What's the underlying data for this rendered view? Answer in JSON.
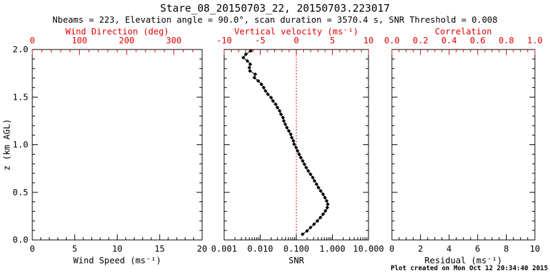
{
  "header": {
    "title": "Stare_08_20150703_22, 20150703.223017",
    "subtitle": "Nbeams = 223, Elevation angle = 90.0°, scan duration = 3570.4 s, SNR Threshold = 0.008"
  },
  "footer": {
    "created_text": "Plot created on Mon Oct 12 20:34:40 2015"
  },
  "colors": {
    "primary_axis": "#000000",
    "secondary_axis": "#e10000",
    "data_points": "#000000",
    "reference_line": "#e10000",
    "background": "#ffffff"
  },
  "chart_data": [
    {
      "id": "wind-panel",
      "type": "scatter",
      "bottom_axis": {
        "title": "Wind Speed (ms⁻¹)",
        "scale": "linear",
        "min": 0,
        "max": 20,
        "tick_values": [
          0,
          5,
          10,
          15,
          20
        ],
        "tick_labels": [
          "0",
          "5",
          "10",
          "15",
          "20"
        ],
        "minor_step": 1,
        "color": "black"
      },
      "top_axis": {
        "title": "Wind Direction (deg)",
        "scale": "linear",
        "min": 0,
        "max": 360,
        "tick_values": [
          0,
          100,
          200,
          300
        ],
        "tick_labels": [
          "0",
          "100",
          "200",
          "300"
        ],
        "minor_step": 20,
        "color": "red"
      },
      "left_axis": {
        "title": "z (km AGL)",
        "min": 0,
        "max": 2,
        "tick_values": [
          0,
          0.5,
          1,
          1.5,
          2
        ],
        "tick_labels": [
          "0.0",
          "0.5",
          "1.0",
          "1.5",
          "2.0"
        ],
        "minor_step": 0.1,
        "show_labels": true
      },
      "grid": false,
      "reference_lines": [],
      "series": []
    },
    {
      "id": "snr-panel",
      "type": "scatter",
      "bottom_axis": {
        "title": "SNR",
        "scale": "log",
        "min": 0.001,
        "max": 10,
        "tick_values": [
          0.001,
          0.01,
          0.1,
          1,
          10
        ],
        "tick_labels": [
          "0.001",
          "0.010",
          "0.100",
          "1.000",
          "10.000"
        ],
        "color": "black"
      },
      "top_axis": {
        "title": "Vertical velocity (ms⁻¹)",
        "scale": "linear",
        "min": -10,
        "max": 10,
        "tick_values": [
          -10,
          -5,
          0,
          5,
          10
        ],
        "tick_labels": [
          "-10",
          "-5",
          "0",
          "5",
          "10"
        ],
        "minor_step": 1,
        "color": "red"
      },
      "left_axis": {
        "title": "",
        "min": 0,
        "max": 2,
        "tick_values": [
          0,
          0.5,
          1,
          1.5,
          2
        ],
        "tick_labels": [
          "0.0",
          "0.5",
          "1.0",
          "1.5",
          "2.0"
        ],
        "minor_step": 0.1,
        "show_labels": false
      },
      "grid": false,
      "reference_lines": [
        {
          "axis": "top",
          "value": 0,
          "color": "red",
          "style": "dotted",
          "name": "zero-velocity-line"
        }
      ],
      "series": [
        {
          "name": "snr-profile",
          "x_axis": "bottom",
          "marker": "diamond",
          "z": [
            0.06,
            0.095,
            0.13,
            0.165,
            0.2,
            0.235,
            0.27,
            0.305,
            0.34,
            0.375,
            0.41,
            0.445,
            0.48,
            0.515,
            0.55,
            0.585,
            0.62,
            0.655,
            0.69,
            0.725,
            0.76,
            0.795,
            0.83,
            0.865,
            0.9,
            0.935,
            0.97,
            1.005,
            1.04,
            1.075,
            1.11,
            1.145,
            1.18,
            1.215,
            1.25,
            1.285,
            1.32,
            1.355,
            1.39,
            1.425,
            1.46,
            1.495,
            1.53,
            1.565,
            1.6,
            1.635,
            1.67,
            1.705,
            1.74,
            1.775,
            1.81,
            1.845,
            1.88,
            1.915,
            1.95,
            1.985,
            2.02
          ],
          "x": [
            0.149,
            0.199,
            0.247,
            0.31,
            0.384,
            0.465,
            0.552,
            0.64,
            0.721,
            0.744,
            0.69,
            0.621,
            0.552,
            0.473,
            0.41,
            0.364,
            0.319,
            0.285,
            0.247,
            0.214,
            0.188,
            0.168,
            0.15,
            0.133,
            0.12,
            0.108,
            0.099,
            0.0868,
            0.083,
            0.0748,
            0.07,
            0.062,
            0.0548,
            0.0495,
            0.045,
            0.0428,
            0.0375,
            0.0345,
            0.03,
            0.0268,
            0.0225,
            0.02,
            0.0163,
            0.014,
            0.0125,
            0.0108,
            0.0088,
            0.0069,
            0.0073,
            0.0052,
            0.005,
            0.0053,
            0.0044,
            0.0034,
            0.004,
            0.0054,
            0.0074
          ]
        }
      ]
    },
    {
      "id": "residual-panel",
      "type": "scatter",
      "bottom_axis": {
        "title": "Residual (ms⁻¹)",
        "scale": "linear",
        "min": 0,
        "max": 10,
        "tick_values": [
          0,
          2,
          4,
          6,
          8,
          10
        ],
        "tick_labels": [
          "0",
          "2",
          "4",
          "6",
          "8",
          "10"
        ],
        "minor_step": 0.5,
        "color": "black"
      },
      "top_axis": {
        "title": "Correlation",
        "scale": "linear",
        "min": 0,
        "max": 1,
        "tick_values": [
          0,
          0.2,
          0.4,
          0.6,
          0.8,
          1
        ],
        "tick_labels": [
          "0.0",
          "0.2",
          "0.4",
          "0.6",
          "0.8",
          "1.0"
        ],
        "minor_step": 0.05,
        "color": "red"
      },
      "left_axis": {
        "title": "",
        "min": 0,
        "max": 2,
        "tick_values": [
          0,
          0.5,
          1,
          1.5,
          2
        ],
        "tick_labels": [
          "0.0",
          "0.5",
          "1.0",
          "1.5",
          "2.0"
        ],
        "minor_step": 0.1,
        "show_labels": false
      },
      "grid": false,
      "reference_lines": [],
      "series": []
    }
  ]
}
